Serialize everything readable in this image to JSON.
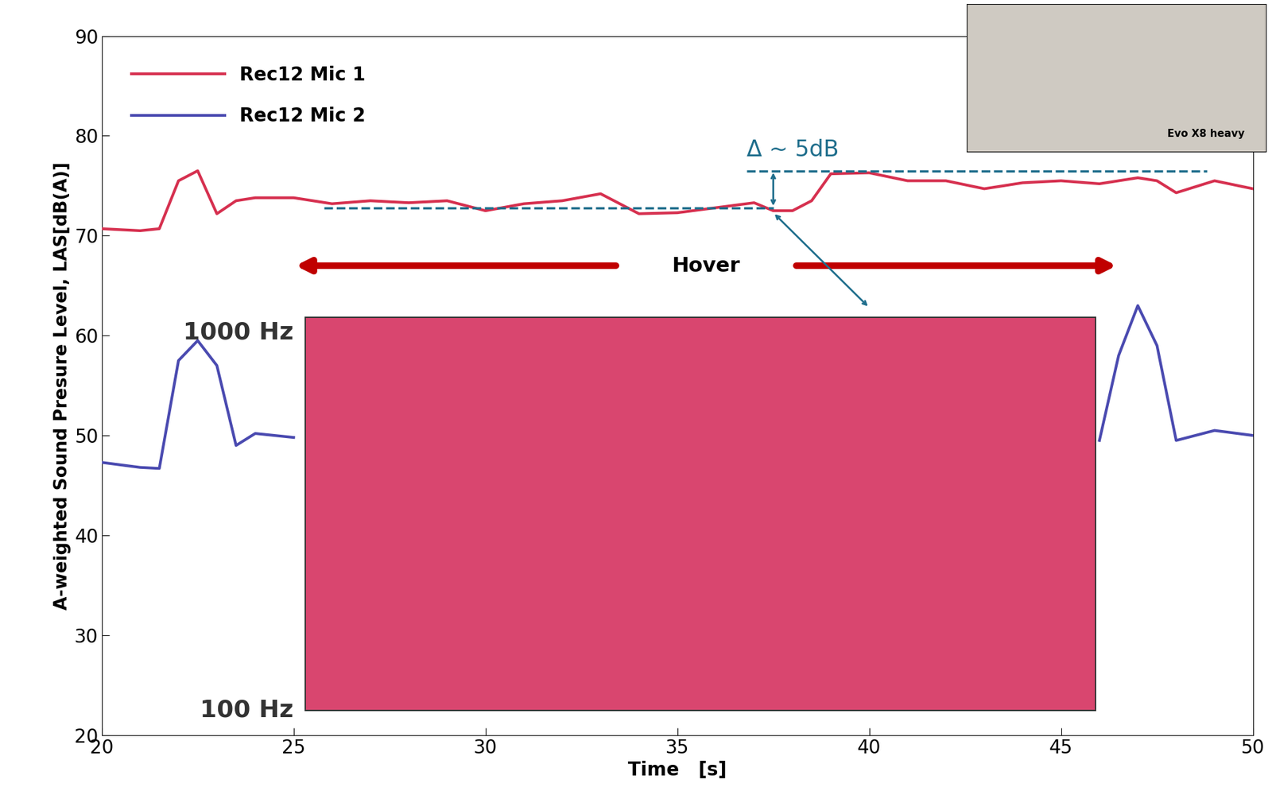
{
  "chart_data": {
    "type": "line",
    "xlabel": "Time   [s]",
    "ylabel": "A-weighted Sound Presure Level, LAS[dB(A)]",
    "x": [
      20,
      21,
      21.5,
      22,
      22.5,
      23,
      23.5,
      24,
      25,
      26,
      27,
      28,
      29,
      30,
      31,
      32,
      33,
      34,
      35,
      36,
      37,
      37.5,
      38,
      38.5,
      39,
      40,
      41,
      42,
      43,
      44,
      45,
      46,
      46.5,
      47,
      47.5,
      48,
      49,
      50
    ],
    "series": [
      {
        "name": "Rec12 Mic 1",
        "color": "#d6304f",
        "values": [
          70.7,
          70.5,
          70.7,
          75.5,
          76.5,
          72.2,
          73.5,
          73.8,
          73.8,
          73.2,
          73.5,
          73.3,
          73.5,
          72.5,
          73.2,
          73.5,
          74.2,
          72.2,
          72.3,
          72.8,
          73.3,
          72.5,
          72.5,
          73.5,
          76.2,
          76.3,
          75.5,
          75.5,
          74.7,
          75.3,
          75.5,
          75.2,
          75.5,
          75.8,
          75.5,
          74.3,
          75.5,
          74.7
        ]
      },
      {
        "name": "Rec12 Mic 2",
        "color": "#4a4ab0",
        "values": [
          47.3,
          46.8,
          46.7,
          57.5,
          59.5,
          57.0,
          49.0,
          50.2,
          49.8,
          null,
          null,
          null,
          null,
          null,
          null,
          null,
          null,
          null,
          null,
          null,
          null,
          null,
          null,
          null,
          null,
          null,
          null,
          null,
          null,
          null,
          null,
          49.5,
          58.0,
          63.0,
          59.0,
          49.5,
          50.5,
          50.0
        ]
      }
    ],
    "xlim": [
      20,
      50
    ],
    "xticks": [
      20,
      25,
      30,
      35,
      40,
      45,
      50
    ],
    "ylim": [
      20,
      90
    ],
    "yticks": [
      20,
      30,
      40,
      50,
      60,
      70,
      80,
      90
    ],
    "legend": "upper left",
    "reference_lines": [
      {
        "y": 72.8,
        "x": [
          25.8,
          37.5
        ]
      },
      {
        "y": 76.5,
        "x": [
          36.8,
          48.8
        ]
      }
    ],
    "delta_text": "Δ ~ 5dB",
    "hover": {
      "text": "Hover",
      "x": [
        25,
        46.5
      ],
      "y": 67
    },
    "spectrogram": {
      "x": [
        25.3,
        45.9
      ],
      "y": [
        22.5,
        61.8
      ],
      "freq_labels": [
        "1000 Hz",
        "100 Hz"
      ]
    },
    "inset": {
      "label": "Evo X8 heavy"
    }
  }
}
